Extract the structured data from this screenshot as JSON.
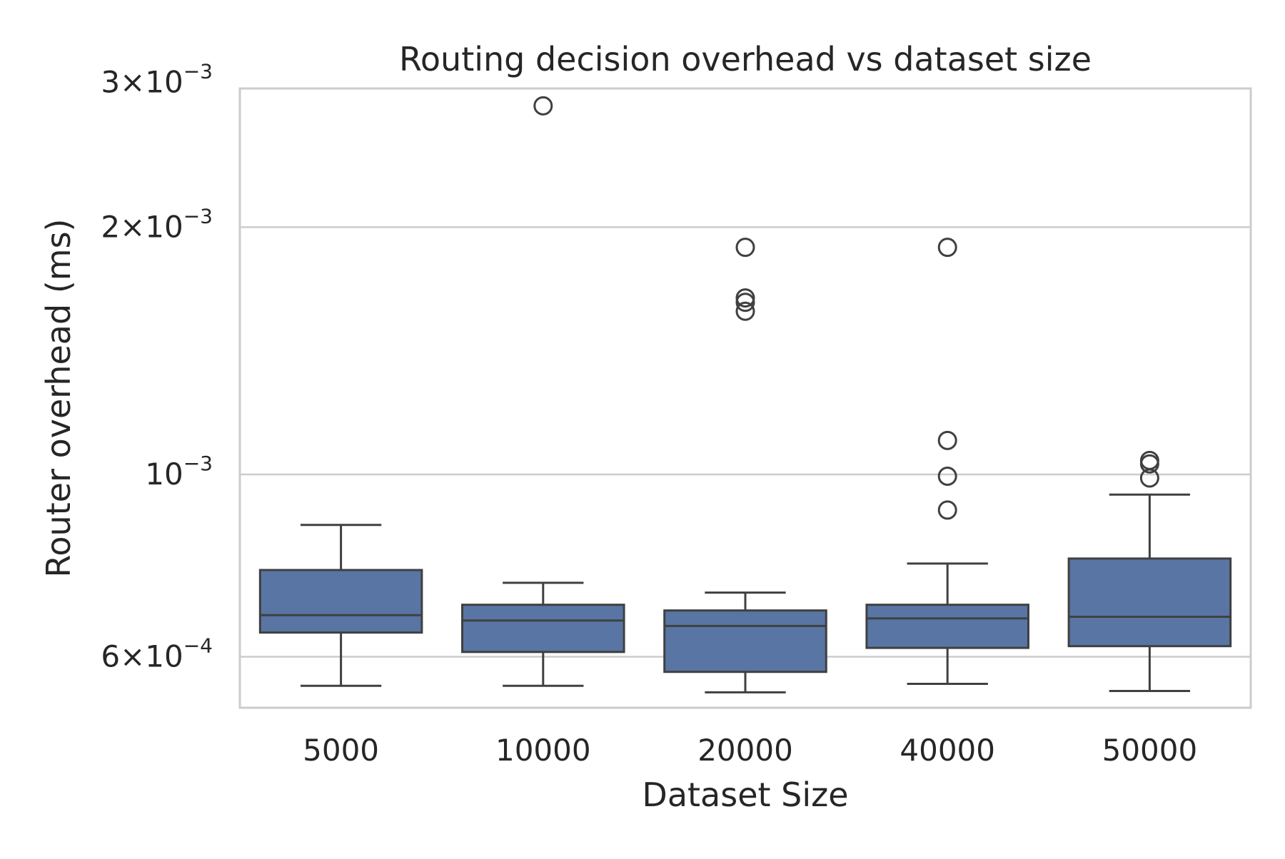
{
  "chart_data": {
    "type": "box",
    "title": "Routing decision overhead vs dataset size",
    "xlabel": "Dataset Size",
    "ylabel": "Router overhead (ms)",
    "yscale": "log",
    "ylim": [
      0.00052,
      0.00295
    ],
    "grid": true,
    "legend": "none",
    "box_color": "#5875a4",
    "line_color": "#404040",
    "categories": [
      "5000",
      "10000",
      "20000",
      "40000",
      "50000"
    ],
    "y_ticks": [
      {
        "value": 0.003,
        "mantissa": "3",
        "exponent": "−3"
      },
      {
        "value": 0.002,
        "mantissa": "2",
        "exponent": "−3"
      },
      {
        "value": 0.001,
        "mantissa": "",
        "exponent": "−3"
      },
      {
        "value": 0.0006,
        "mantissa": "6",
        "exponent": "−4"
      }
    ],
    "boxes": [
      {
        "category": "5000",
        "whisker_low": 0.000553,
        "q1": 0.000642,
        "median": 0.000674,
        "q3": 0.000765,
        "whisker_high": 0.000868,
        "outliers": []
      },
      {
        "category": "10000",
        "whisker_low": 0.000553,
        "q1": 0.000608,
        "median": 0.000664,
        "q3": 0.000694,
        "whisker_high": 0.000738,
        "outliers": [
          0.00281
        ]
      },
      {
        "category": "20000",
        "whisker_low": 0.000543,
        "q1": 0.000575,
        "median": 0.000654,
        "q3": 0.000683,
        "whisker_high": 0.000718,
        "outliers": [
          0.00189,
          0.00164,
          0.00162,
          0.00158
        ]
      },
      {
        "category": "40000",
        "whisker_low": 0.000556,
        "q1": 0.000615,
        "median": 0.000668,
        "q3": 0.000694,
        "whisker_high": 0.000779,
        "outliers": [
          0.00189,
          0.0011,
          0.000995,
          0.000905
        ]
      },
      {
        "category": "50000",
        "whisker_low": 0.000545,
        "q1": 0.000618,
        "median": 0.000671,
        "q3": 0.00079,
        "whisker_high": 0.000945,
        "outliers": [
          0.00104,
          0.00103,
          0.00099
        ]
      }
    ]
  }
}
